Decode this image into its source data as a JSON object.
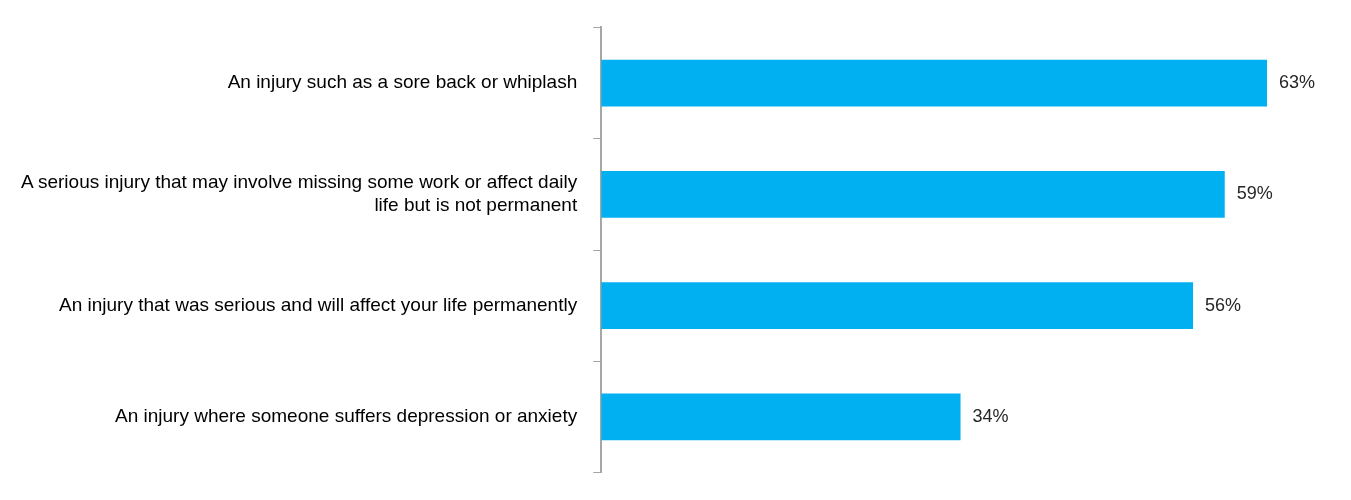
{
  "chart_data": {
    "type": "bar",
    "orientation": "horizontal",
    "categories": [
      "An injury such as a sore back or whiplash",
      "A serious injury that may involve missing some work or affect daily life but is not permanent",
      "An injury that was serious and will affect your life permanently",
      "An injury where someone suffers depression or anxiety"
    ],
    "values": [
      63,
      59,
      56,
      34
    ],
    "color": "#00b0f0",
    "value_labels": [
      "63%",
      "59%",
      "56%",
      "34%"
    ]
  }
}
